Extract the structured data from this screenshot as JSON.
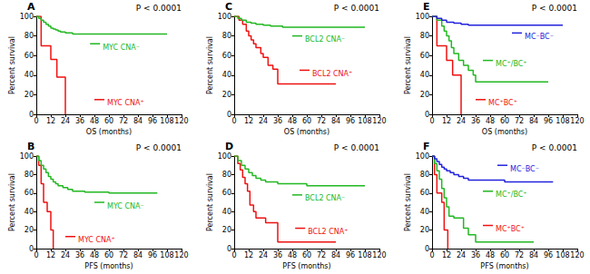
{
  "chart_data": [
    {
      "type": "line",
      "title": "A",
      "annotation": "P < 0.0001",
      "x_label": "OS (months)",
      "y_label": "Percent survival",
      "xlim": [
        0,
        120
      ],
      "xticks": [
        0,
        12,
        24,
        36,
        48,
        60,
        72,
        84,
        96,
        108,
        120
      ],
      "ylim": [
        0,
        100
      ],
      "yticks": [
        0,
        20,
        40,
        60,
        80,
        100
      ],
      "grid": false,
      "series": [
        {
          "name": "MYC CNA⁻",
          "color": "#22b822",
          "x": [
            0,
            2,
            4,
            6,
            8,
            10,
            12,
            14,
            16,
            18,
            20,
            24,
            30,
            108
          ],
          "values": [
            100,
            98,
            96,
            94,
            92,
            90,
            88,
            87,
            86,
            85,
            84,
            83,
            82,
            82
          ]
        },
        {
          "name": "MYC CNA⁺",
          "color": "#ee1111",
          "x": [
            0,
            4,
            12,
            17,
            24
          ],
          "values": [
            100,
            70,
            56,
            38,
            0
          ]
        }
      ]
    },
    {
      "type": "line",
      "title": "B",
      "annotation": "P < 0.0001",
      "x_label": "PFS (months)",
      "y_label": "Percent survival",
      "xlim": [
        0,
        120
      ],
      "xticks": [
        0,
        12,
        24,
        36,
        48,
        60,
        72,
        84,
        96,
        108,
        120
      ],
      "ylim": [
        0,
        100
      ],
      "yticks": [
        0,
        20,
        40,
        60,
        80,
        100
      ],
      "grid": false,
      "series": [
        {
          "name": "MYC CNA⁻",
          "color": "#22b822",
          "x": [
            0,
            2,
            4,
            6,
            8,
            10,
            12,
            14,
            16,
            18,
            22,
            26,
            30,
            40,
            60,
            100
          ],
          "values": [
            100,
            95,
            90,
            86,
            82,
            78,
            75,
            72,
            70,
            68,
            66,
            64,
            62,
            61,
            60,
            60
          ]
        },
        {
          "name": "MYC CNA⁺",
          "color": "#ee1111",
          "x": [
            0,
            2,
            4,
            6,
            9,
            12,
            14
          ],
          "values": [
            100,
            90,
            70,
            50,
            40,
            20,
            0
          ]
        }
      ]
    },
    {
      "type": "line",
      "title": "C",
      "annotation": "P < 0.0001",
      "x_label": "OS (months)",
      "y_label": "Percent survival",
      "xlim": [
        0,
        120
      ],
      "xticks": [
        0,
        12,
        24,
        36,
        48,
        60,
        72,
        84,
        96,
        108,
        120
      ],
      "ylim": [
        0,
        100
      ],
      "yticks": [
        0,
        20,
        40,
        60,
        80,
        100
      ],
      "grid": false,
      "series": [
        {
          "name": "BCL2 CNA⁻",
          "color": "#22b822",
          "x": [
            0,
            3,
            6,
            10,
            14,
            18,
            24,
            30,
            40,
            108
          ],
          "values": [
            100,
            98,
            96,
            94,
            93,
            92,
            91,
            90,
            89,
            89
          ]
        },
        {
          "name": "BCL2 CNA⁺",
          "color": "#ee1111",
          "x": [
            0,
            4,
            7,
            10,
            12,
            14,
            16,
            18,
            22,
            24,
            28,
            32,
            36,
            84
          ],
          "values": [
            100,
            96,
            92,
            85,
            80,
            76,
            72,
            68,
            62,
            58,
            50,
            46,
            31,
            31
          ]
        }
      ]
    },
    {
      "type": "line",
      "title": "D",
      "annotation": "P < 0.0001",
      "x_label": "PFS (months)",
      "y_label": "Percent survival",
      "xlim": [
        0,
        120
      ],
      "xticks": [
        0,
        12,
        24,
        36,
        48,
        60,
        72,
        84,
        96,
        108,
        120
      ],
      "ylim": [
        0,
        100
      ],
      "yticks": [
        0,
        20,
        40,
        60,
        80,
        100
      ],
      "grid": false,
      "series": [
        {
          "name": "BCL2 CNA⁻",
          "color": "#22b822",
          "x": [
            0,
            3,
            6,
            9,
            12,
            15,
            18,
            22,
            26,
            36,
            60,
            108
          ],
          "values": [
            100,
            95,
            90,
            86,
            82,
            79,
            76,
            74,
            72,
            70,
            68,
            68
          ]
        },
        {
          "name": "BCL2 CNA⁺",
          "color": "#ee1111",
          "x": [
            0,
            3,
            5,
            7,
            9,
            11,
            13,
            16,
            18,
            24,
            26,
            36,
            84
          ],
          "values": [
            100,
            92,
            85,
            77,
            70,
            62,
            47,
            40,
            33,
            33,
            28,
            7,
            7
          ]
        }
      ]
    },
    {
      "type": "line",
      "title": "E",
      "annotation": "P < 0.0001",
      "x_label": "OS (months)",
      "y_label": "Percent survival",
      "xlim": [
        0,
        120
      ],
      "xticks": [
        0,
        12,
        24,
        36,
        48,
        60,
        72,
        84,
        96,
        108,
        120
      ],
      "ylim": [
        0,
        100
      ],
      "yticks": [
        0,
        20,
        40,
        60,
        80,
        100
      ],
      "grid": false,
      "series": [
        {
          "name": "MC⁻BC⁻",
          "color": "#2222dd",
          "x": [
            0,
            4,
            8,
            12,
            18,
            24,
            30,
            108
          ],
          "values": [
            100,
            98,
            96,
            94,
            93,
            92,
            91,
            91
          ]
        },
        {
          "name": "MC⁺/BC⁺",
          "color": "#22b822",
          "x": [
            0,
            4,
            8,
            10,
            12,
            14,
            16,
            18,
            22,
            26,
            30,
            34,
            36,
            96
          ],
          "values": [
            100,
            96,
            90,
            85,
            80,
            75,
            68,
            62,
            55,
            50,
            45,
            40,
            33,
            33
          ]
        },
        {
          "name": "MC⁺BC⁺",
          "color": "#ee1111",
          "x": [
            0,
            4,
            12,
            17,
            24
          ],
          "values": [
            100,
            70,
            55,
            40,
            0
          ]
        }
      ]
    },
    {
      "type": "line",
      "title": "F",
      "annotation": "P < 0.0001",
      "x_label": "PFS (months)",
      "y_label": "Percent survival",
      "xlim": [
        0,
        120
      ],
      "xticks": [
        0,
        12,
        24,
        36,
        48,
        60,
        72,
        84,
        96,
        108,
        120
      ],
      "ylim": [
        0,
        100
      ],
      "yticks": [
        0,
        20,
        40,
        60,
        80,
        100
      ],
      "grid": false,
      "series": [
        {
          "name": "MC⁻BC⁻",
          "color": "#2222dd",
          "x": [
            0,
            2,
            4,
            6,
            8,
            10,
            12,
            15,
            18,
            22,
            26,
            30,
            60,
            100
          ],
          "values": [
            100,
            97,
            94,
            91,
            88,
            86,
            84,
            82,
            80,
            78,
            76,
            74,
            72,
            72
          ]
        },
        {
          "name": "MC⁺/BC⁺",
          "color": "#22b822",
          "x": [
            0,
            2,
            4,
            6,
            8,
            10,
            12,
            14,
            18,
            24,
            26,
            30,
            36,
            84
          ],
          "values": [
            100,
            92,
            84,
            75,
            65,
            55,
            45,
            35,
            33,
            33,
            22,
            15,
            7,
            7
          ]
        },
        {
          "name": "MC⁺BC⁺",
          "color": "#ee1111",
          "x": [
            0,
            2,
            4,
            8,
            10,
            13
          ],
          "values": [
            100,
            80,
            60,
            50,
            20,
            0
          ]
        }
      ]
    }
  ]
}
